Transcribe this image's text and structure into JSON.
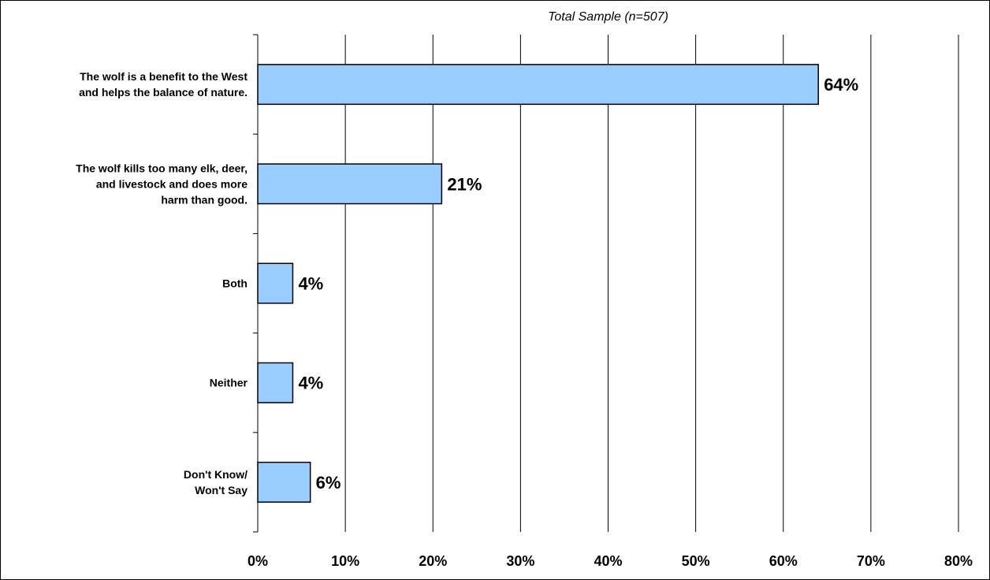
{
  "chart_data": {
    "type": "bar",
    "orientation": "horizontal",
    "subtitle": "Total Sample (n=507)",
    "categories": [
      [
        "The wolf is a benefit to the West",
        "and helps the balance of nature."
      ],
      [
        "The wolf kills too many elk, deer,",
        "and livestock and does more",
        "harm than good."
      ],
      [
        "Both"
      ],
      [
        "Neither"
      ],
      [
        "Don't Know/",
        "Won't Say"
      ]
    ],
    "values": [
      64,
      21,
      4,
      4,
      6
    ],
    "data_labels": [
      "64%",
      "21%",
      "4%",
      "4%",
      "6%"
    ],
    "xlim": [
      0,
      80
    ],
    "x_ticks": [
      0,
      10,
      20,
      30,
      40,
      50,
      60,
      70,
      80
    ],
    "x_tick_labels": [
      "0%",
      "10%",
      "20%",
      "30%",
      "40%",
      "50%",
      "60%",
      "70%",
      "80%"
    ],
    "grid": true,
    "legend": "none",
    "bar_color": "#99ccff",
    "bar_edge_color": "#000000"
  }
}
